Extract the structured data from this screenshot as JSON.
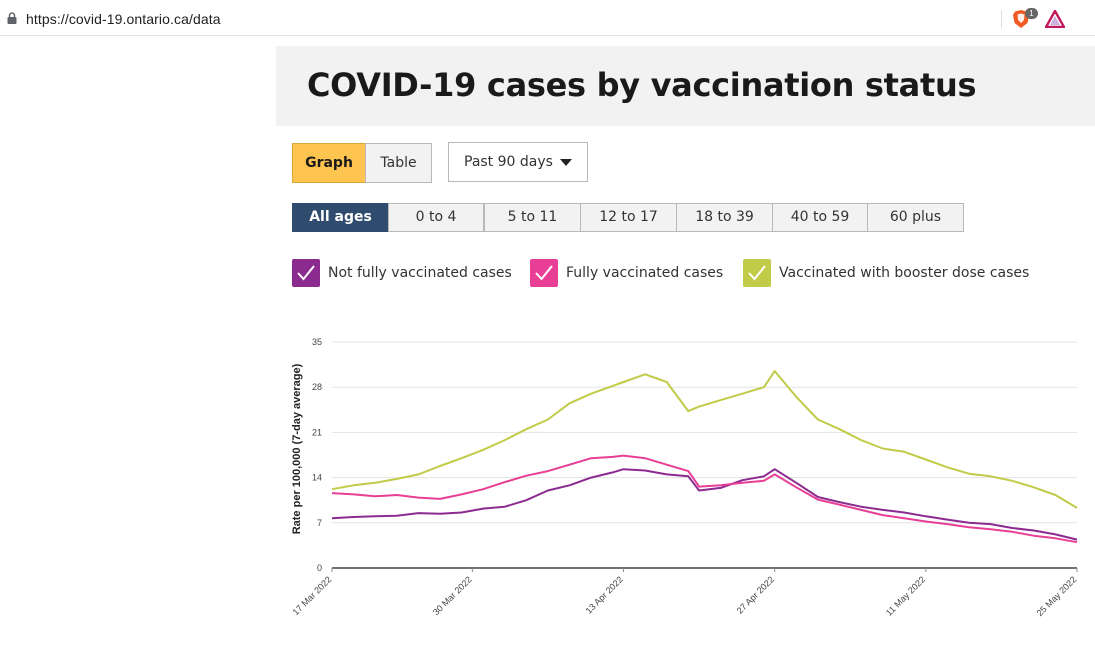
{
  "browser": {
    "url": "https://covid-19.ontario.ca/data",
    "brave_badge": "1",
    "icons": [
      "lock-icon",
      "brave-shield-icon",
      "brave-rewards-icon"
    ]
  },
  "page": {
    "title": "COVID-19 cases by vaccination status"
  },
  "controls": {
    "view_buttons": [
      {
        "label": "Graph",
        "active": true
      },
      {
        "label": "Table",
        "active": false
      }
    ],
    "range_select": {
      "selected": "Past 90 days"
    }
  },
  "age_tabs": [
    {
      "label": "All ages",
      "active": true
    },
    {
      "label": "0 to 4",
      "active": false
    },
    {
      "label": "5 to 11",
      "active": false
    },
    {
      "label": "12 to 17",
      "active": false
    },
    {
      "label": "18 to 39",
      "active": false
    },
    {
      "label": "40 to 59",
      "active": false
    },
    {
      "label": "60 plus",
      "active": false
    }
  ],
  "legend": [
    {
      "label": "Not fully vaccinated cases",
      "color": "#8b2a8f",
      "checked": true
    },
    {
      "label": "Fully vaccinated cases",
      "color": "#e83e95",
      "checked": true
    },
    {
      "label": "Vaccinated with booster dose cases",
      "color": "#c1cb47",
      "checked": true
    }
  ],
  "chart_data": {
    "type": "line",
    "ylabel": "Rate per 100,000 (7-day average)",
    "xlabel": "",
    "ylim": [
      0,
      35
    ],
    "yticks": [
      0,
      7,
      14,
      21,
      28,
      35
    ],
    "x_start": "2022-03-17",
    "x_end": "2022-05-25",
    "xticks": [
      "17 Mar 2022",
      "30 Mar 2022",
      "13 Apr 2022",
      "27 Apr 2022",
      "11 May 2022",
      "25 May 2022"
    ],
    "grid": true,
    "series": [
      {
        "name": "Not fully vaccinated cases",
        "color": "#8b2a8f",
        "points": [
          [
            "2022-03-17",
            7.7
          ],
          [
            "2022-03-19",
            7.9
          ],
          [
            "2022-03-21",
            8.0
          ],
          [
            "2022-03-23",
            8.1
          ],
          [
            "2022-03-25",
            8.5
          ],
          [
            "2022-03-27",
            8.4
          ],
          [
            "2022-03-29",
            8.6
          ],
          [
            "2022-03-31",
            9.2
          ],
          [
            "2022-04-02",
            9.5
          ],
          [
            "2022-04-04",
            10.5
          ],
          [
            "2022-04-06",
            12.0
          ],
          [
            "2022-04-08",
            12.8
          ],
          [
            "2022-04-10",
            14.0
          ],
          [
            "2022-04-12",
            14.8
          ],
          [
            "2022-04-13",
            15.3
          ],
          [
            "2022-04-15",
            15.1
          ],
          [
            "2022-04-17",
            14.5
          ],
          [
            "2022-04-19",
            14.2
          ],
          [
            "2022-04-20",
            12.0
          ],
          [
            "2022-04-22",
            12.4
          ],
          [
            "2022-04-24",
            13.6
          ],
          [
            "2022-04-26",
            14.2
          ],
          [
            "2022-04-27",
            15.3
          ],
          [
            "2022-04-29",
            13.2
          ],
          [
            "2022-05-01",
            11.0
          ],
          [
            "2022-05-03",
            10.2
          ],
          [
            "2022-05-05",
            9.5
          ],
          [
            "2022-05-07",
            9.0
          ],
          [
            "2022-05-09",
            8.6
          ],
          [
            "2022-05-11",
            8.0
          ],
          [
            "2022-05-13",
            7.5
          ],
          [
            "2022-05-15",
            7.0
          ],
          [
            "2022-05-17",
            6.8
          ],
          [
            "2022-05-19",
            6.2
          ],
          [
            "2022-05-21",
            5.8
          ],
          [
            "2022-05-23",
            5.2
          ],
          [
            "2022-05-25",
            4.4
          ]
        ]
      },
      {
        "name": "Fully vaccinated cases",
        "color": "#e83e95",
        "points": [
          [
            "2022-03-17",
            11.6
          ],
          [
            "2022-03-19",
            11.4
          ],
          [
            "2022-03-21",
            11.1
          ],
          [
            "2022-03-23",
            11.3
          ],
          [
            "2022-03-25",
            10.9
          ],
          [
            "2022-03-27",
            10.7
          ],
          [
            "2022-03-29",
            11.4
          ],
          [
            "2022-03-31",
            12.2
          ],
          [
            "2022-04-02",
            13.3
          ],
          [
            "2022-04-04",
            14.3
          ],
          [
            "2022-04-06",
            15.0
          ],
          [
            "2022-04-08",
            16.0
          ],
          [
            "2022-04-10",
            17.0
          ],
          [
            "2022-04-12",
            17.2
          ],
          [
            "2022-04-13",
            17.4
          ],
          [
            "2022-04-15",
            17.0
          ],
          [
            "2022-04-17",
            16.0
          ],
          [
            "2022-04-19",
            15.0
          ],
          [
            "2022-04-20",
            12.6
          ],
          [
            "2022-04-22",
            12.8
          ],
          [
            "2022-04-24",
            13.2
          ],
          [
            "2022-04-26",
            13.5
          ],
          [
            "2022-04-27",
            14.5
          ],
          [
            "2022-04-29",
            12.5
          ],
          [
            "2022-05-01",
            10.6
          ],
          [
            "2022-05-03",
            9.8
          ],
          [
            "2022-05-05",
            9.0
          ],
          [
            "2022-05-07",
            8.2
          ],
          [
            "2022-05-09",
            7.7
          ],
          [
            "2022-05-11",
            7.2
          ],
          [
            "2022-05-13",
            6.8
          ],
          [
            "2022-05-15",
            6.3
          ],
          [
            "2022-05-17",
            6.0
          ],
          [
            "2022-05-19",
            5.6
          ],
          [
            "2022-05-21",
            5.0
          ],
          [
            "2022-05-23",
            4.6
          ],
          [
            "2022-05-25",
            4.0
          ]
        ]
      },
      {
        "name": "Vaccinated with booster dose cases",
        "color": "#c1cb47",
        "points": [
          [
            "2022-03-17",
            12.2
          ],
          [
            "2022-03-19",
            12.8
          ],
          [
            "2022-03-21",
            13.2
          ],
          [
            "2022-03-23",
            13.8
          ],
          [
            "2022-03-25",
            14.5
          ],
          [
            "2022-03-27",
            15.8
          ],
          [
            "2022-03-29",
            17.0
          ],
          [
            "2022-03-31",
            18.3
          ],
          [
            "2022-04-02",
            19.8
          ],
          [
            "2022-04-04",
            21.5
          ],
          [
            "2022-04-06",
            23.0
          ],
          [
            "2022-04-08",
            25.5
          ],
          [
            "2022-04-10",
            27.0
          ],
          [
            "2022-04-12",
            28.2
          ],
          [
            "2022-04-13",
            28.8
          ],
          [
            "2022-04-15",
            30.0
          ],
          [
            "2022-04-17",
            28.8
          ],
          [
            "2022-04-19",
            24.3
          ],
          [
            "2022-04-20",
            25.0
          ],
          [
            "2022-04-22",
            26.0
          ],
          [
            "2022-04-24",
            27.0
          ],
          [
            "2022-04-26",
            28.0
          ],
          [
            "2022-04-27",
            30.5
          ],
          [
            "2022-04-29",
            26.5
          ],
          [
            "2022-05-01",
            23.0
          ],
          [
            "2022-05-03",
            21.5
          ],
          [
            "2022-05-05",
            19.8
          ],
          [
            "2022-05-07",
            18.5
          ],
          [
            "2022-05-09",
            18.0
          ],
          [
            "2022-05-11",
            16.8
          ],
          [
            "2022-05-13",
            15.6
          ],
          [
            "2022-05-15",
            14.6
          ],
          [
            "2022-05-17",
            14.2
          ],
          [
            "2022-05-19",
            13.5
          ],
          [
            "2022-05-21",
            12.5
          ],
          [
            "2022-05-23",
            11.3
          ],
          [
            "2022-05-25",
            9.3
          ]
        ]
      }
    ]
  }
}
